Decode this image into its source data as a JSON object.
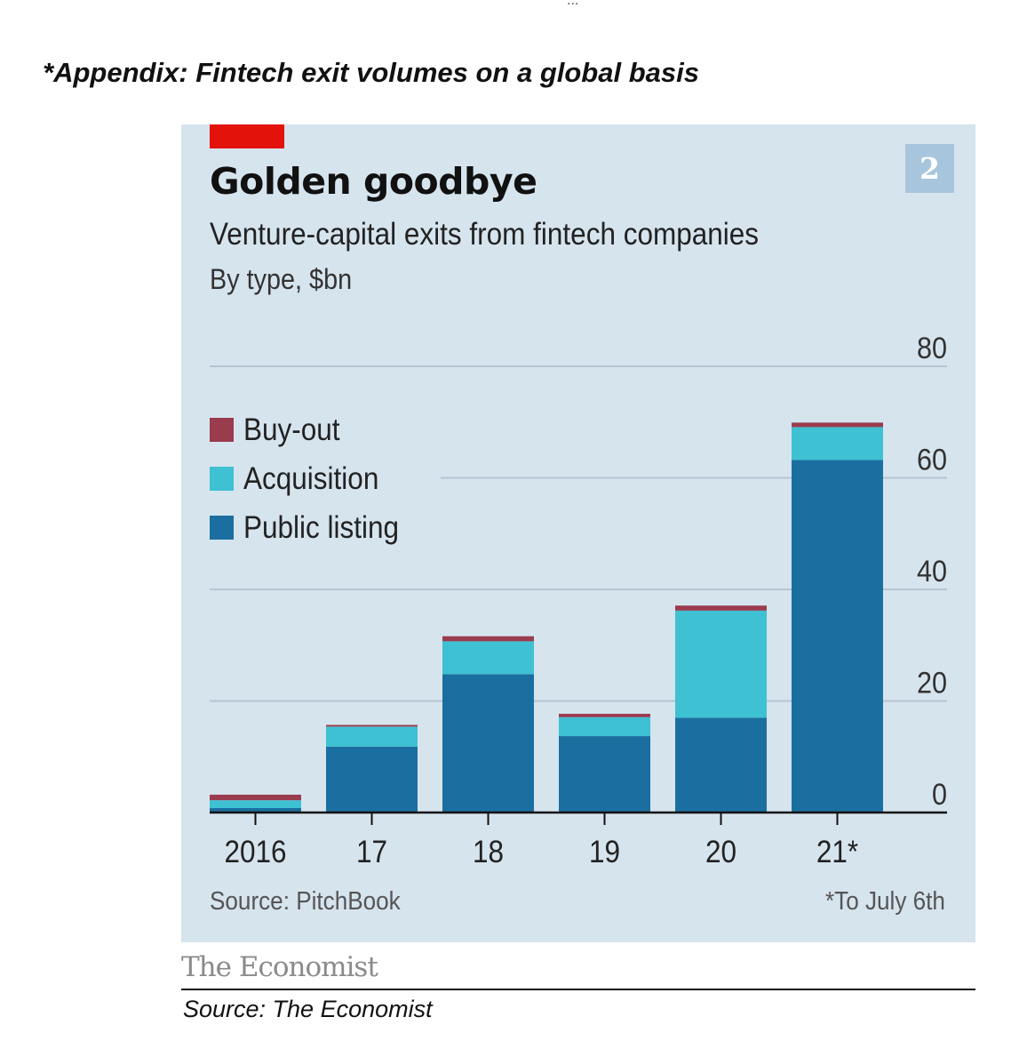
{
  "page": {
    "top_mark": "...",
    "appendix_heading": "*Appendix: Fintech exit volumes on a global basis",
    "publisher": "The Economist",
    "credit": "Source: The Economist"
  },
  "colors": {
    "background": "#d6e4ee",
    "buy_out": "#9b3b4e",
    "acquisition": "#3ec1d3",
    "public_listing": "#1b6fa0",
    "accent": "#e3120b",
    "badge": "#a7c6dd"
  },
  "chart_data": {
    "type": "bar",
    "stacked": true,
    "badge": "2",
    "title": "Golden goodbye",
    "subtitle": "Venture-capital exits from fintech companies",
    "units": "By type, $bn",
    "categories": [
      "2016",
      "17",
      "18",
      "19",
      "20",
      "21*"
    ],
    "series": [
      {
        "name": "Public listing",
        "color": "#1b6fa0",
        "values": [
          0.8,
          11.8,
          24.8,
          13.7,
          17.0,
          63.2
        ]
      },
      {
        "name": "Acquisition",
        "color": "#3ec1d3",
        "values": [
          1.4,
          3.6,
          5.9,
          3.4,
          19.2,
          5.9
        ]
      },
      {
        "name": "Buy-out",
        "color": "#9b3b4e",
        "values": [
          1.0,
          0.3,
          0.9,
          0.6,
          0.9,
          0.8
        ]
      }
    ],
    "legend": [
      "Buy-out",
      "Acquisition",
      "Public listing"
    ],
    "yticks": [
      0,
      20,
      40,
      60,
      80
    ],
    "ylim": [
      0,
      80
    ],
    "y_axis_side": "right",
    "grid": true,
    "legend_position": "top-left",
    "source": "Source: PitchBook",
    "footnote": "*To July 6th"
  }
}
